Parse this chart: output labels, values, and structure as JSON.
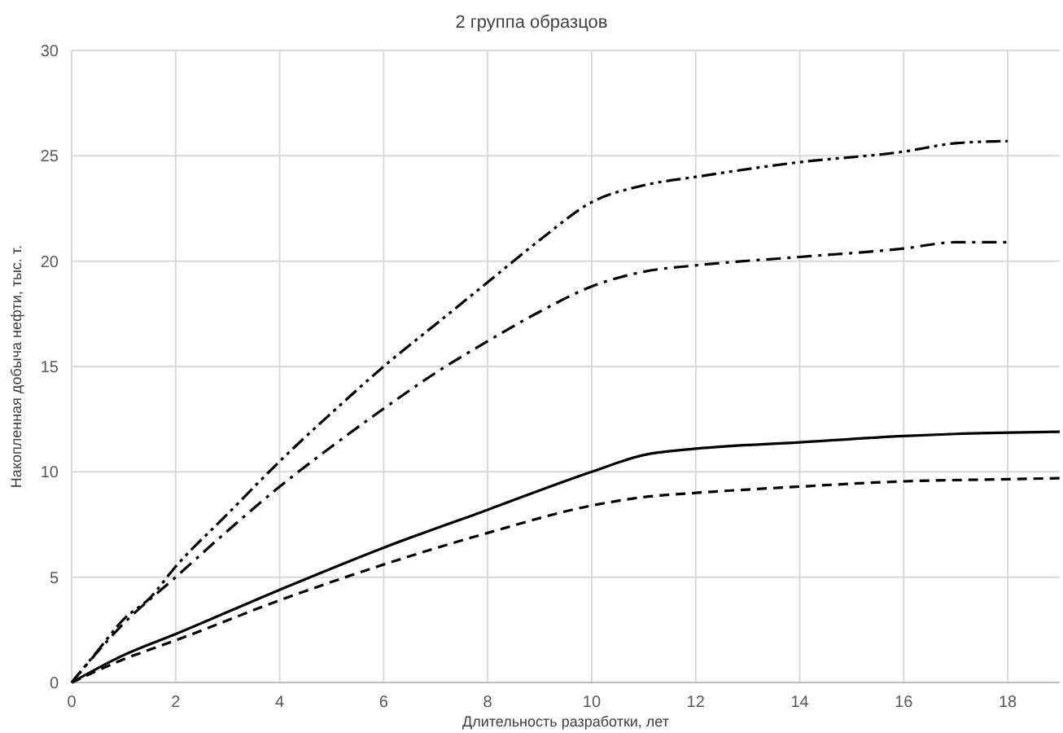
{
  "chart_data": {
    "type": "line",
    "title": "2 группа образцов",
    "xlabel": "Длительность разработки, лет",
    "ylabel": "Накопленная добыча нефти, тыс. т.",
    "xlim": [
      0,
      19
    ],
    "xticks": [
      0,
      2,
      4,
      6,
      8,
      10,
      12,
      14,
      16,
      18
    ],
    "ylim": [
      0,
      30
    ],
    "yticks": [
      0,
      5,
      10,
      15,
      20,
      25,
      30
    ],
    "grid": true,
    "marker": "none",
    "series": [
      {
        "color": "#000000",
        "line_style": "dashdotdot",
        "x": [
          0,
          0.5,
          1,
          1.5,
          2,
          3,
          4,
          5,
          6,
          7,
          8,
          9,
          10,
          11,
          12,
          14,
          16,
          17,
          18
        ],
        "values": [
          0,
          1.5,
          3,
          4,
          5.5,
          8,
          10.5,
          12.8,
          15,
          17,
          19,
          21,
          22.8,
          23.6,
          24,
          24.7,
          25.2,
          25.6,
          25.7
        ]
      },
      {
        "color": "#000000",
        "line_style": "dashdot",
        "x": [
          0,
          1,
          2,
          3,
          4,
          5,
          6,
          7,
          8,
          9,
          10,
          11,
          12,
          14,
          16,
          17,
          18
        ],
        "values": [
          0,
          2.8,
          5,
          7.2,
          9.3,
          11.2,
          13,
          14.7,
          16.2,
          17.6,
          18.8,
          19.5,
          19.8,
          20.2,
          20.6,
          20.9,
          20.9
        ]
      },
      {
        "color": "#000000",
        "line_style": "solid",
        "x": [
          0,
          1,
          2,
          4,
          6,
          8,
          10,
          11,
          12,
          14,
          16,
          17,
          19
        ],
        "values": [
          0,
          1.3,
          2.3,
          4.4,
          6.4,
          8.2,
          10,
          10.8,
          11.1,
          11.4,
          11.7,
          11.8,
          11.9
        ]
      },
      {
        "color": "#000000",
        "line_style": "dashed",
        "x": [
          0,
          1,
          2,
          4,
          6,
          8,
          10,
          11,
          12,
          14,
          16,
          18,
          19
        ],
        "values": [
          0,
          1.1,
          2,
          3.9,
          5.6,
          7.1,
          8.4,
          8.8,
          9,
          9.3,
          9.55,
          9.65,
          9.7
        ]
      }
    ]
  }
}
